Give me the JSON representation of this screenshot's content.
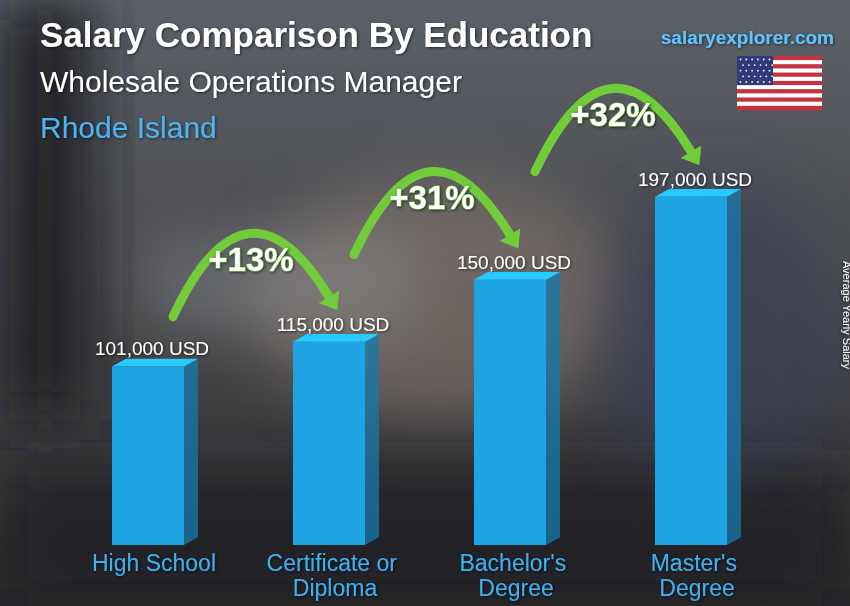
{
  "chart_data": {
    "type": "bar",
    "title": "Salary Comparison By Education",
    "subtitle": "Wholesale Operations Manager",
    "location": "Rhode Island",
    "source": "salaryexplorer.com",
    "y_label": "Average Yearly Salary",
    "categories": [
      "High School",
      "Certificate or Diploma",
      "Bachelor's Degree",
      "Master's Degree"
    ],
    "values": [
      101000,
      115000,
      150000,
      197000
    ],
    "value_labels": [
      "101,000 USD",
      "115,000 USD",
      "150,000 USD",
      "197,000 USD"
    ],
    "annotations": [
      "+13%",
      "+31%",
      "+32%"
    ],
    "color": "#1fa3e3",
    "ylim": [
      0,
      220000
    ],
    "data_labels": true,
    "tick_labels": "x",
    "grid": false
  }
}
